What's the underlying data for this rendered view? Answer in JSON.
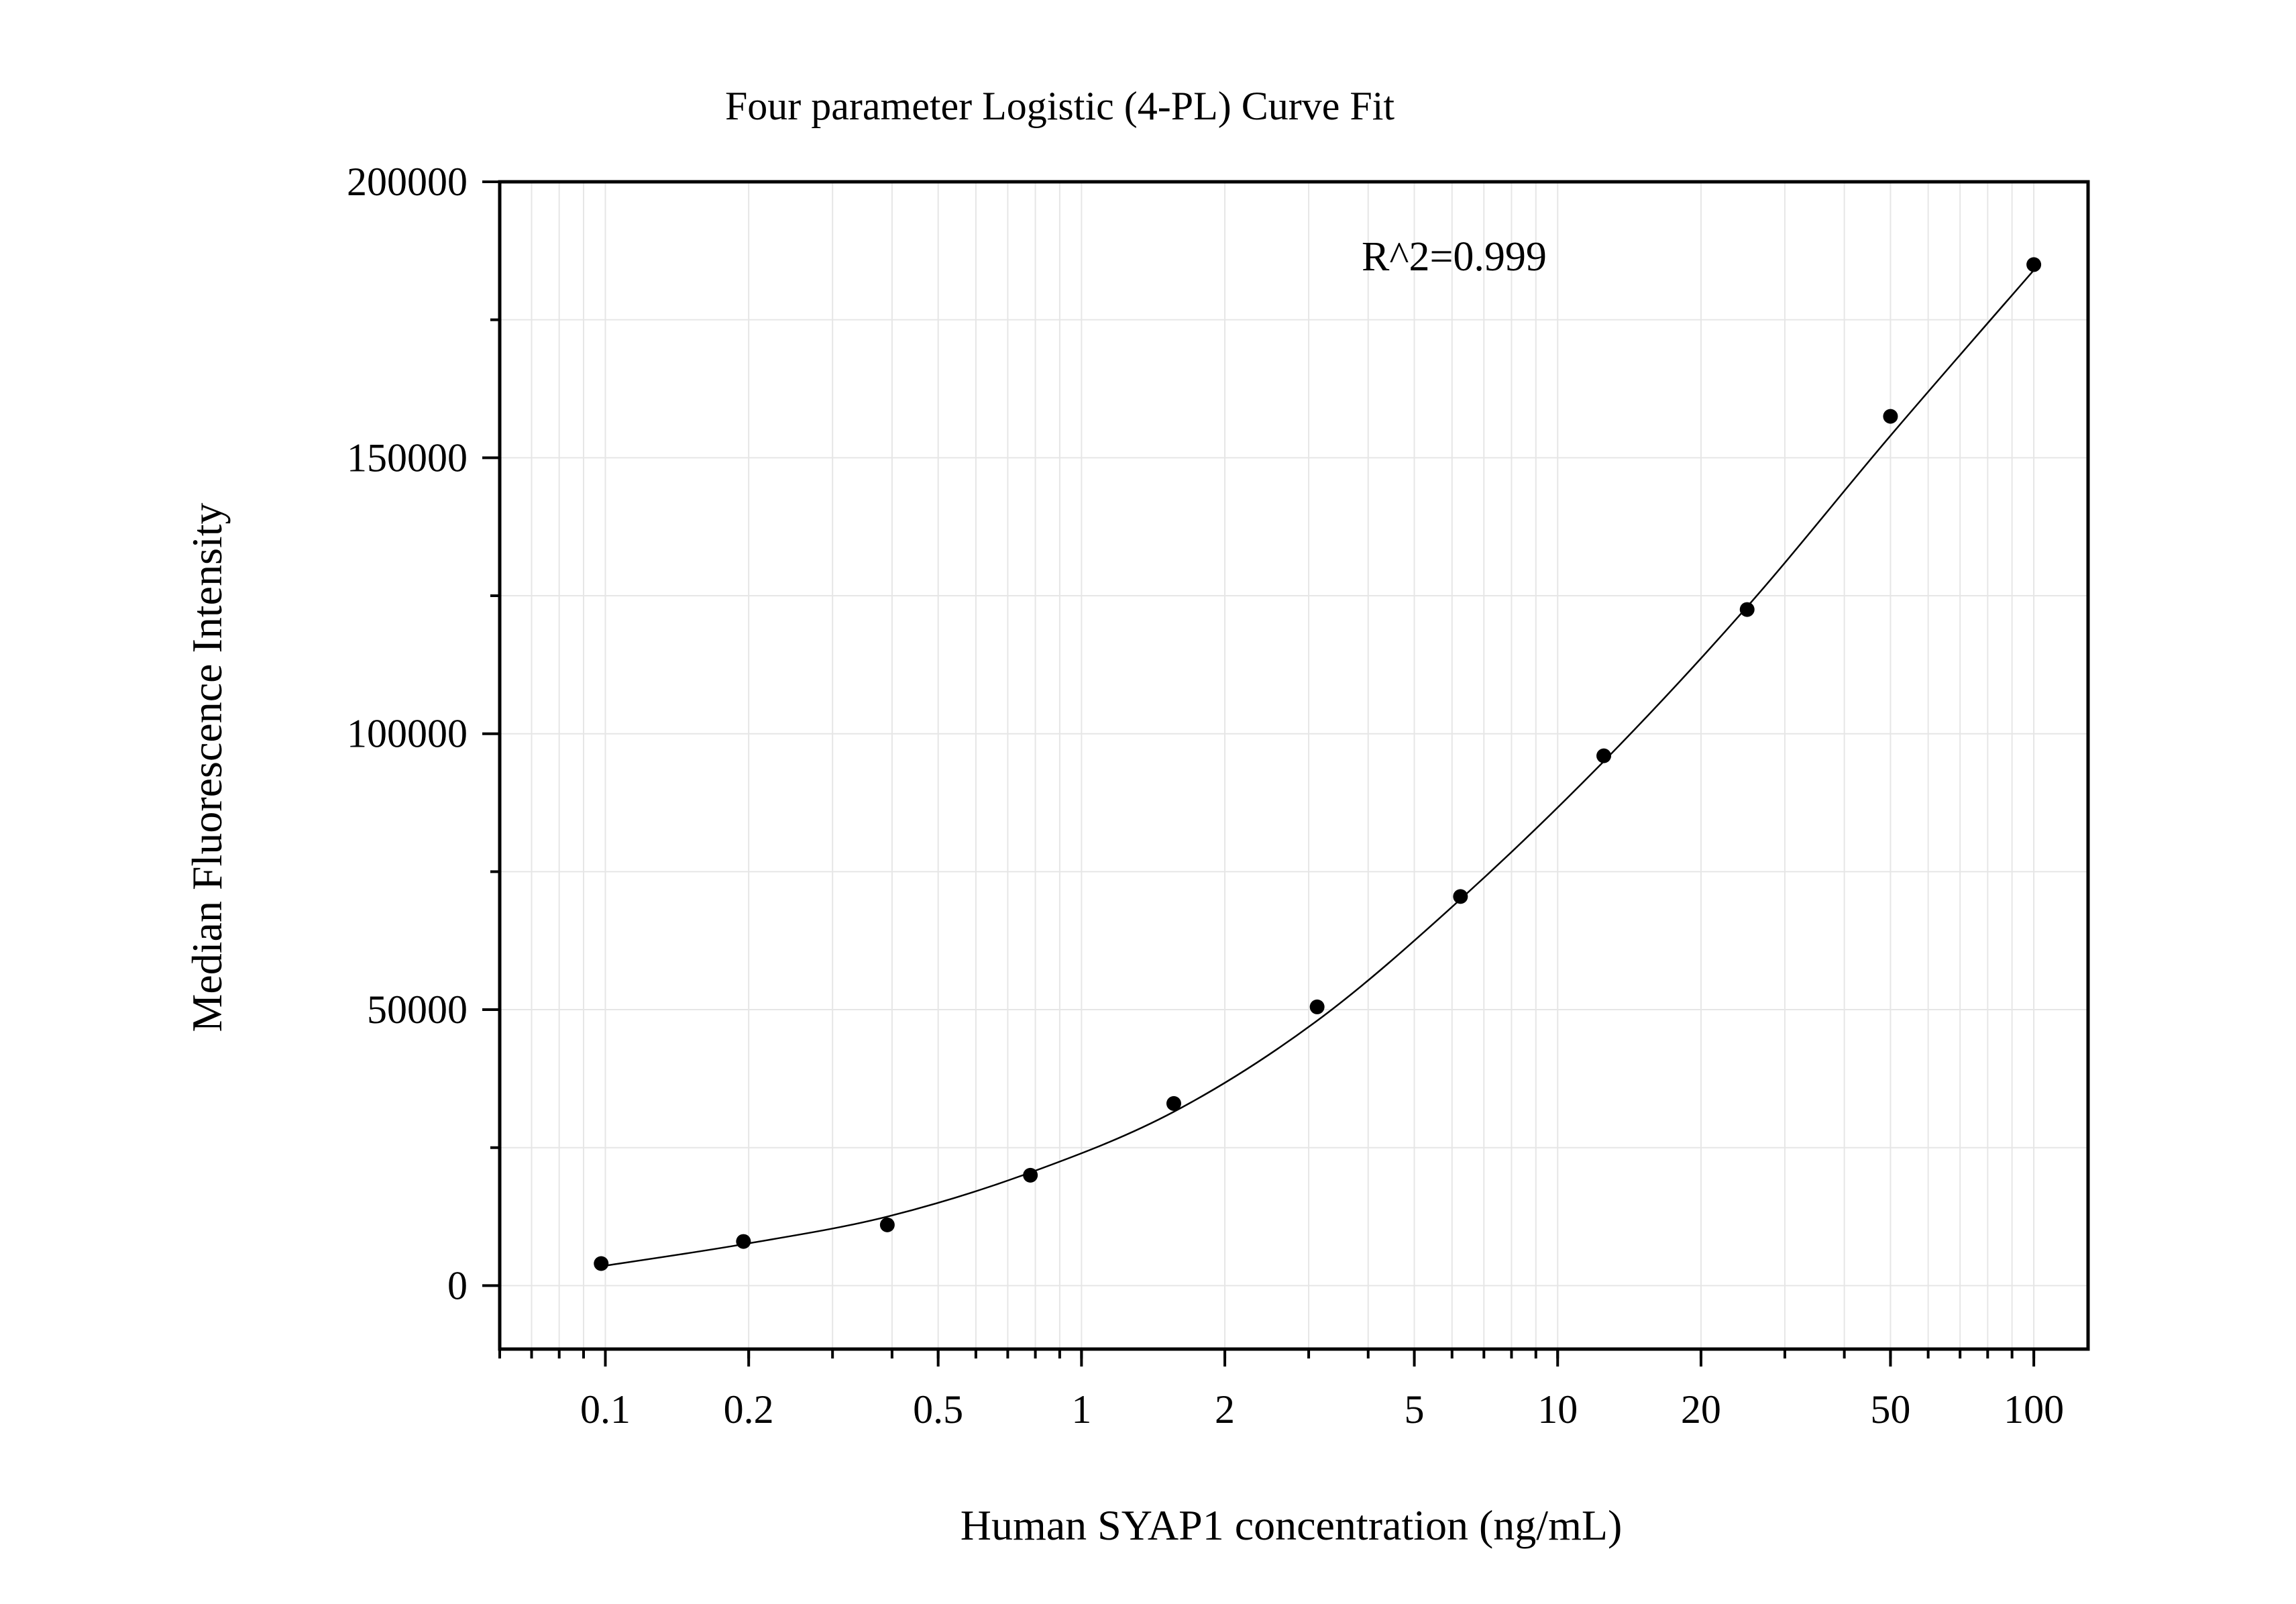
{
  "chart_data": {
    "type": "scatter",
    "title": "Four parameter Logistic (4-PL) Curve Fit",
    "xlabel": "Human SYAP1 concentration (ng/mL)",
    "ylabel": "Median Fluorescence Intensity",
    "x_scale": "log",
    "xlim": [
      0.06,
      130
    ],
    "ylim": [
      -11500,
      200000
    ],
    "x_ticks": [
      0.1,
      0.2,
      0.5,
      1,
      2,
      5,
      10,
      20,
      50,
      100
    ],
    "x_tick_labels": [
      "0.1",
      "0.2",
      "0.5",
      "1",
      "2",
      "5",
      "10",
      "20",
      "50",
      "100"
    ],
    "y_ticks": [
      0,
      50000,
      100000,
      150000,
      200000
    ],
    "y_tick_labels": [
      "0",
      "50000",
      "100000",
      "150000",
      "200000"
    ],
    "grid": true,
    "annotation": "R^2=0.999",
    "series": [
      {
        "type": "scatter",
        "x": [
          0.098,
          0.195,
          0.391,
          0.781,
          1.5625,
          3.125,
          6.25,
          12.5,
          25,
          50,
          100
        ],
        "y": [
          4000,
          8000,
          11000,
          20000,
          33000,
          50500,
          70500,
          96000,
          122500,
          157500,
          185000
        ]
      },
      {
        "type": "line",
        "fit": "4PL",
        "x": [
          0.098,
          0.195,
          0.391,
          0.781,
          1.5625,
          3.125,
          6.25,
          12.5,
          25,
          50,
          100
        ],
        "y": [
          3500,
          7500,
          12500,
          20500,
          31500,
          48000,
          70000,
          95000,
          123000,
          154000,
          184000
        ]
      }
    ]
  }
}
